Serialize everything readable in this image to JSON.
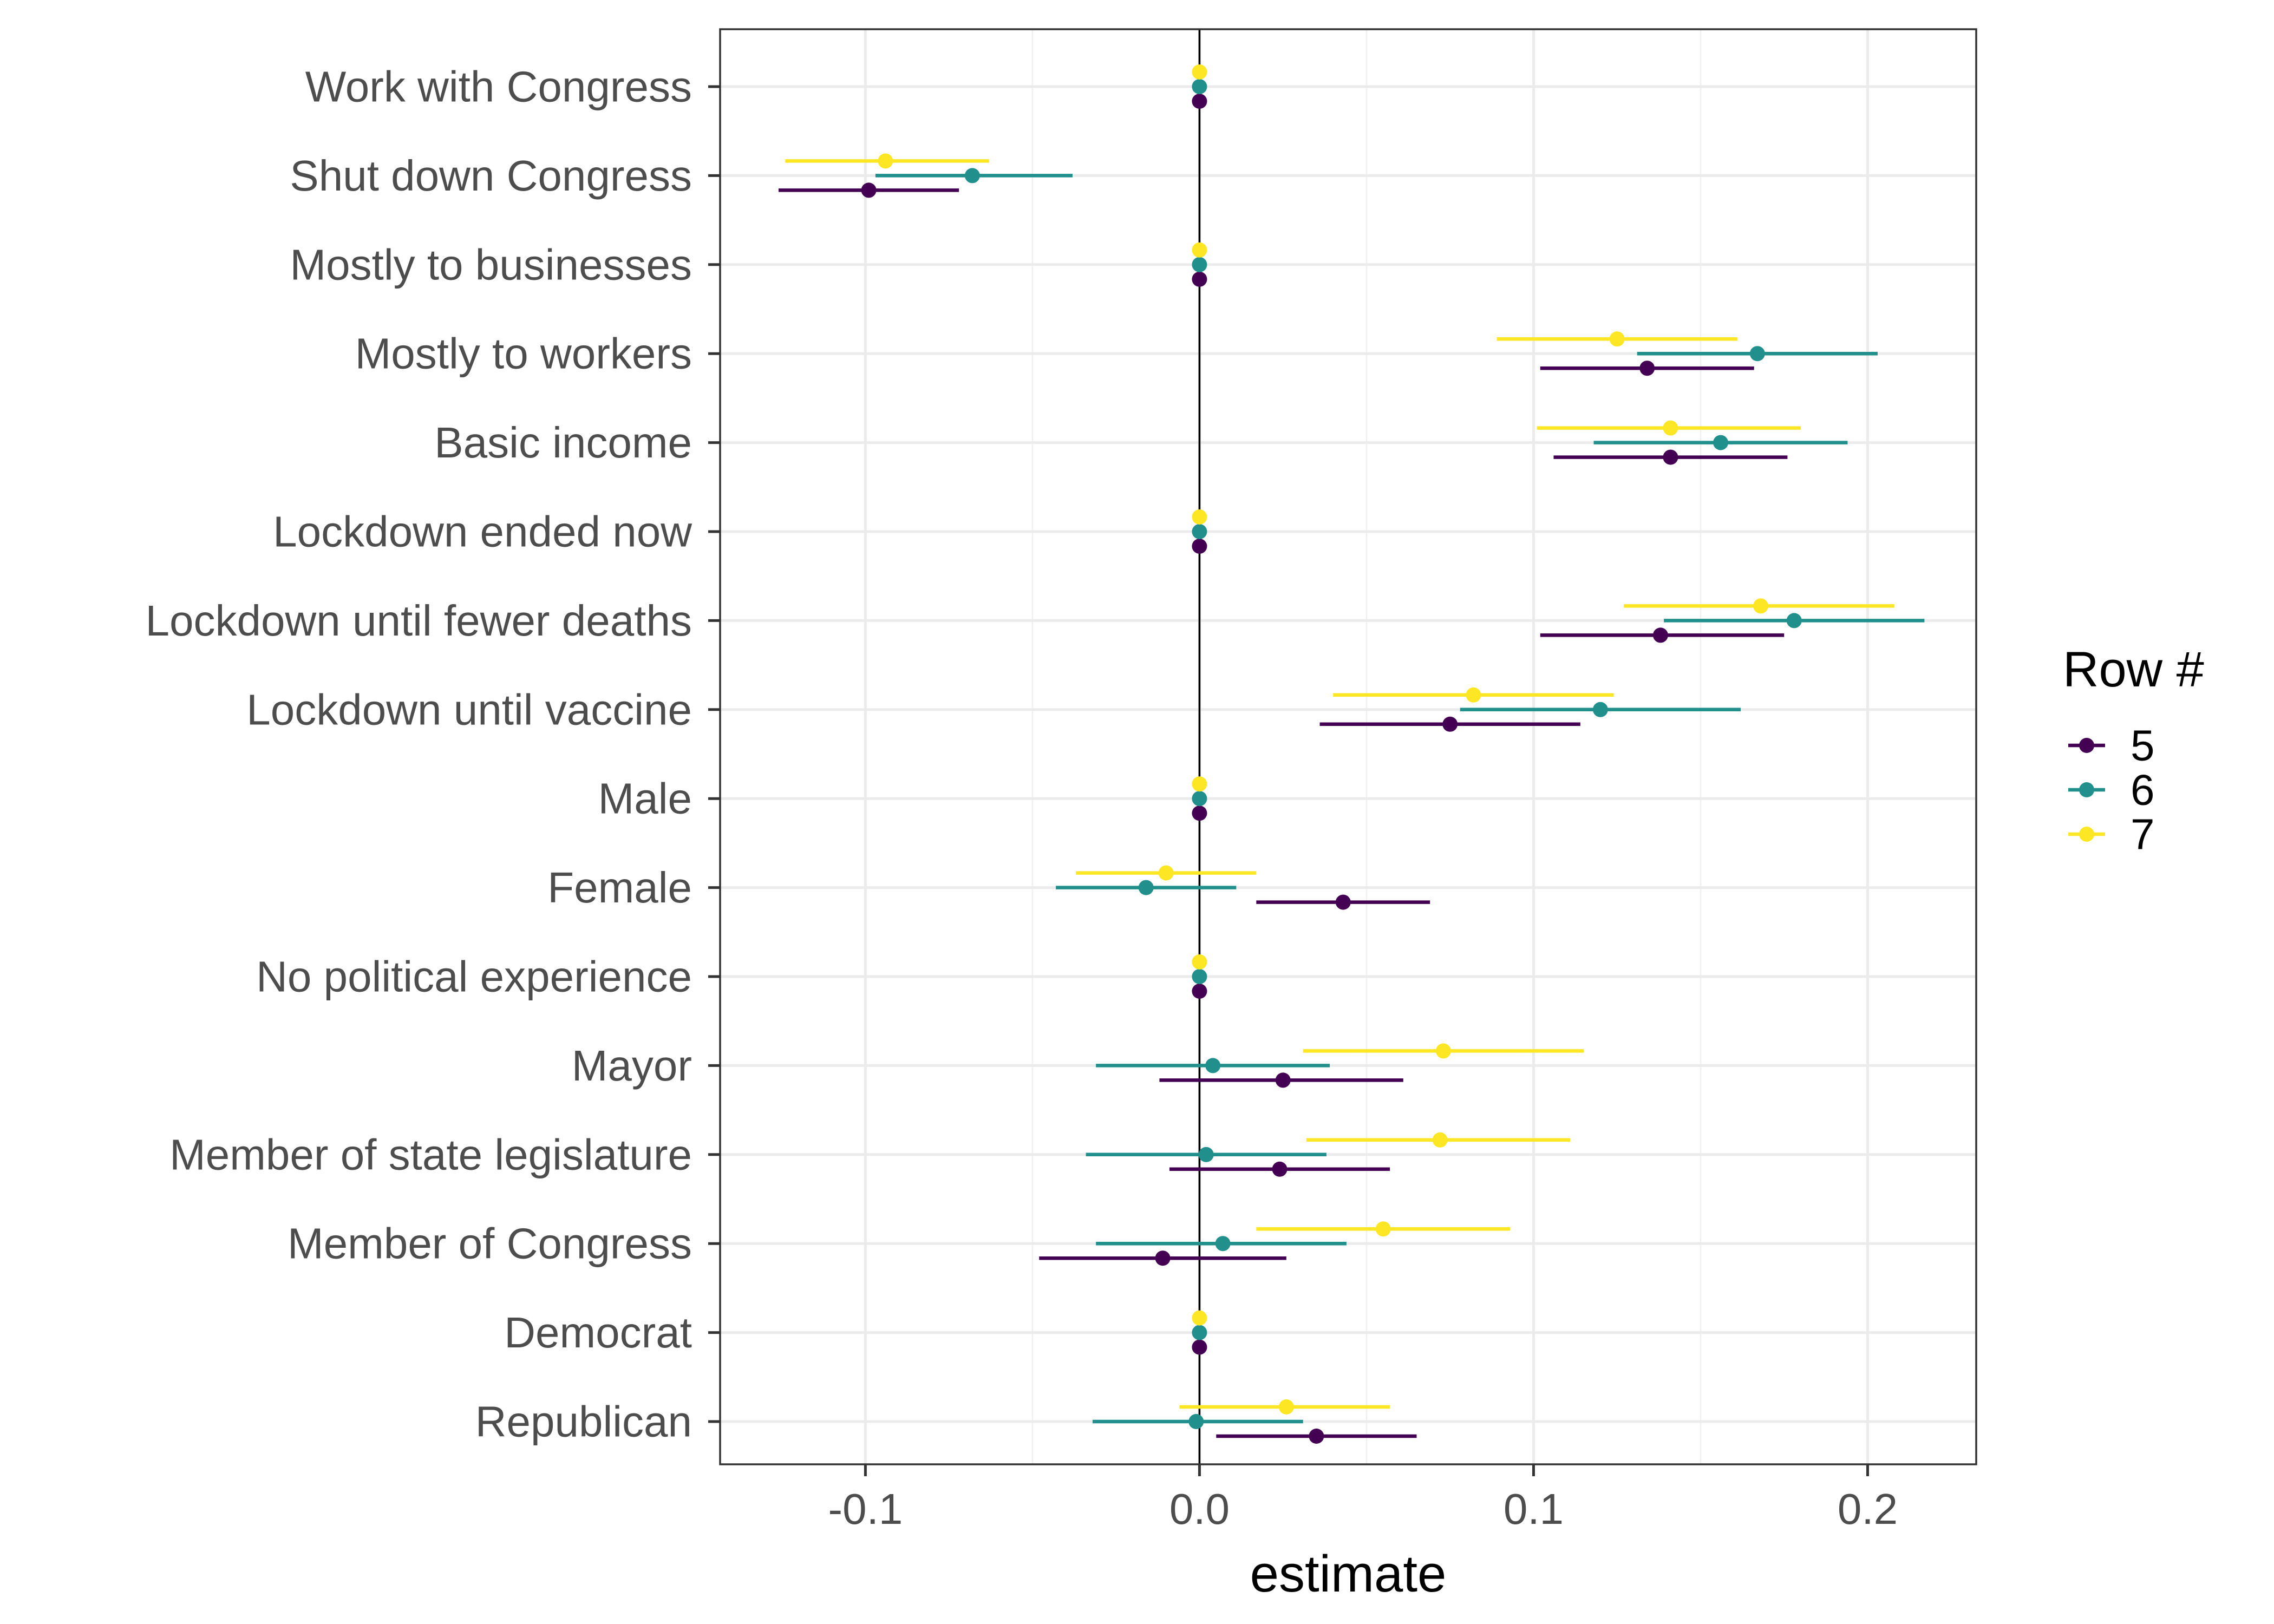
{
  "chart_data": {
    "type": "scatter",
    "subtype": "coefficient-plot",
    "title": "",
    "xlabel": "estimate",
    "ylabel": "",
    "xlim": [
      -0.1435,
      0.2325
    ],
    "x_ticks": [
      -0.1,
      0.0,
      0.1,
      0.2
    ],
    "x_tick_labels": [
      "-0.1",
      "0.0",
      "0.1",
      "0.2"
    ],
    "reference_line_x": 0,
    "grid": true,
    "legend": {
      "title": "Row #",
      "position": "right"
    },
    "categories": [
      "Work with Congress",
      "Shut down Congress",
      "Mostly to businesses",
      "Mostly to workers",
      "Basic income",
      "Lockdown ended now",
      "Lockdown until fewer deaths",
      "Lockdown until vaccine",
      "Male",
      "Female",
      "No political experience",
      "Mayor",
      "Member of state legislature",
      "Member of Congress",
      "Democrat",
      "Republican"
    ],
    "series": [
      {
        "name": "5",
        "color": "#440154",
        "points": [
          {
            "estimate": 0.0,
            "lower": 0.0,
            "upper": 0.0
          },
          {
            "estimate": -0.099,
            "lower": -0.126,
            "upper": -0.072
          },
          {
            "estimate": 0.0,
            "lower": 0.0,
            "upper": 0.0
          },
          {
            "estimate": 0.134,
            "lower": 0.102,
            "upper": 0.166
          },
          {
            "estimate": 0.141,
            "lower": 0.106,
            "upper": 0.176
          },
          {
            "estimate": 0.0,
            "lower": 0.0,
            "upper": 0.0
          },
          {
            "estimate": 0.138,
            "lower": 0.102,
            "upper": 0.175
          },
          {
            "estimate": 0.075,
            "lower": 0.036,
            "upper": 0.114
          },
          {
            "estimate": 0.0,
            "lower": 0.0,
            "upper": 0.0
          },
          {
            "estimate": 0.043,
            "lower": 0.017,
            "upper": 0.069
          },
          {
            "estimate": 0.0,
            "lower": 0.0,
            "upper": 0.0
          },
          {
            "estimate": 0.025,
            "lower": -0.012,
            "upper": 0.061
          },
          {
            "estimate": 0.024,
            "lower": -0.009,
            "upper": 0.057
          },
          {
            "estimate": -0.011,
            "lower": -0.048,
            "upper": 0.026
          },
          {
            "estimate": 0.0,
            "lower": 0.0,
            "upper": 0.0
          },
          {
            "estimate": 0.035,
            "lower": 0.005,
            "upper": 0.065
          }
        ]
      },
      {
        "name": "6",
        "color": "#21908C",
        "points": [
          {
            "estimate": 0.0,
            "lower": 0.0,
            "upper": 0.0
          },
          {
            "estimate": -0.068,
            "lower": -0.097,
            "upper": -0.038
          },
          {
            "estimate": 0.0,
            "lower": 0.0,
            "upper": 0.0
          },
          {
            "estimate": 0.167,
            "lower": 0.131,
            "upper": 0.203
          },
          {
            "estimate": 0.156,
            "lower": 0.118,
            "upper": 0.194
          },
          {
            "estimate": 0.0,
            "lower": 0.0,
            "upper": 0.0
          },
          {
            "estimate": 0.178,
            "lower": 0.139,
            "upper": 0.217
          },
          {
            "estimate": 0.12,
            "lower": 0.078,
            "upper": 0.162
          },
          {
            "estimate": 0.0,
            "lower": 0.0,
            "upper": 0.0
          },
          {
            "estimate": -0.016,
            "lower": -0.043,
            "upper": 0.011
          },
          {
            "estimate": 0.0,
            "lower": 0.0,
            "upper": 0.0
          },
          {
            "estimate": 0.004,
            "lower": -0.031,
            "upper": 0.039
          },
          {
            "estimate": 0.002,
            "lower": -0.034,
            "upper": 0.038
          },
          {
            "estimate": 0.007,
            "lower": -0.031,
            "upper": 0.044
          },
          {
            "estimate": 0.0,
            "lower": 0.0,
            "upper": 0.0
          },
          {
            "estimate": -0.001,
            "lower": -0.032,
            "upper": 0.031
          }
        ]
      },
      {
        "name": "7",
        "color": "#FDE725",
        "points": [
          {
            "estimate": 0.0,
            "lower": 0.0,
            "upper": 0.0
          },
          {
            "estimate": -0.094,
            "lower": -0.124,
            "upper": -0.063
          },
          {
            "estimate": 0.0,
            "lower": 0.0,
            "upper": 0.0
          },
          {
            "estimate": 0.125,
            "lower": 0.089,
            "upper": 0.161
          },
          {
            "estimate": 0.141,
            "lower": 0.101,
            "upper": 0.18
          },
          {
            "estimate": 0.0,
            "lower": 0.0,
            "upper": 0.0
          },
          {
            "estimate": 0.168,
            "lower": 0.127,
            "upper": 0.208
          },
          {
            "estimate": 0.082,
            "lower": 0.04,
            "upper": 0.124
          },
          {
            "estimate": 0.0,
            "lower": 0.0,
            "upper": 0.0
          },
          {
            "estimate": -0.01,
            "lower": -0.037,
            "upper": 0.017
          },
          {
            "estimate": 0.0,
            "lower": 0.0,
            "upper": 0.0
          },
          {
            "estimate": 0.073,
            "lower": 0.031,
            "upper": 0.115
          },
          {
            "estimate": 0.072,
            "lower": 0.032,
            "upper": 0.111
          },
          {
            "estimate": 0.055,
            "lower": 0.017,
            "upper": 0.093
          },
          {
            "estimate": 0.0,
            "lower": 0.0,
            "upper": 0.0
          },
          {
            "estimate": 0.026,
            "lower": -0.006,
            "upper": 0.057
          }
        ]
      }
    ]
  }
}
